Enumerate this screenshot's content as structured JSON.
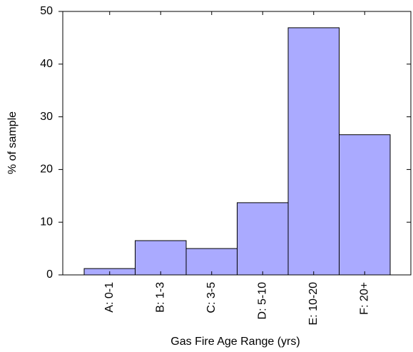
{
  "chart_data": {
    "type": "bar",
    "x_label": "Gas Fire Age Range (yrs)",
    "y_label": "% of sample",
    "categories": [
      "A: 0-1",
      "B: 1-3",
      "C: 3-5",
      "D: 5-10",
      "E: 10-20",
      "F: 20+"
    ],
    "values": [
      1.2,
      6.5,
      5.0,
      13.7,
      46.9,
      26.6
    ],
    "color": "#aaaaff",
    "ylim": [
      0,
      50
    ],
    "yticks": [
      0,
      10,
      20,
      30,
      40,
      50
    ]
  }
}
